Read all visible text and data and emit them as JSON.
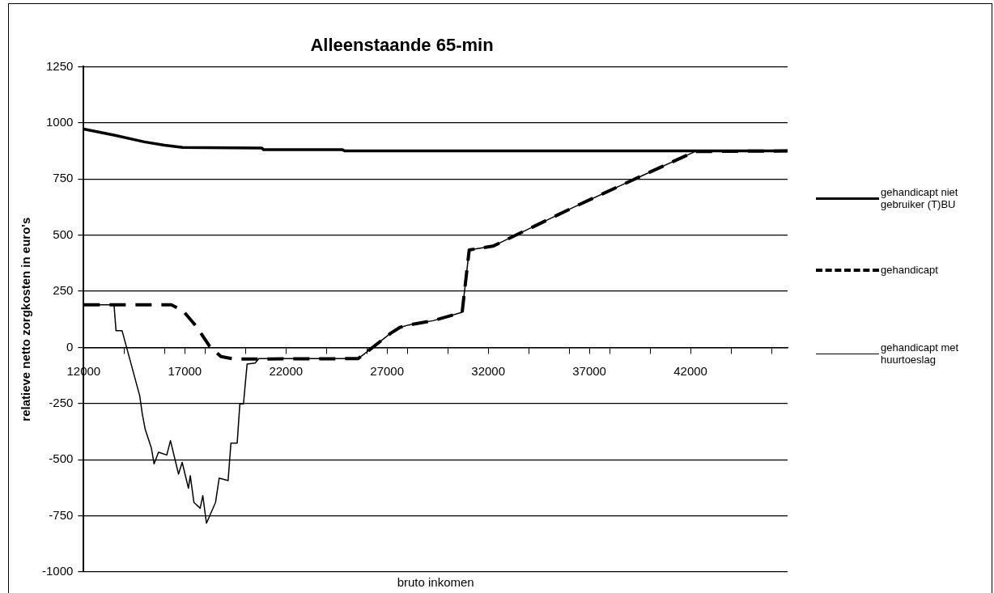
{
  "chart_data": {
    "type": "line",
    "title": "Alleenstaande 65-min",
    "xlabel": "bruto inkomen",
    "ylabel": "relatieve netto zorgkosten in euro's",
    "xlim": [
      12000,
      46800
    ],
    "xticks": [
      12000,
      {
        "value": 14000,
        "label": null
      },
      {
        "value": 16000,
        "label": null
      },
      17000,
      {
        "value": 18000,
        "label": null
      },
      {
        "value": 20000,
        "label": null
      },
      22000,
      {
        "value": 24000,
        "label": null
      },
      {
        "value": 26000,
        "label": null
      },
      27000,
      {
        "value": 28000,
        "label": null
      },
      {
        "value": 30000,
        "label": null
      },
      32000,
      {
        "value": 34000,
        "label": null
      },
      {
        "value": 36000,
        "label": null
      },
      37000,
      {
        "value": 38000,
        "label": null
      },
      {
        "value": 40000,
        "label": null
      },
      42000,
      {
        "value": 44000,
        "label": null
      },
      {
        "value": 46000,
        "label": null
      }
    ],
    "ylim": [
      -1000,
      1250
    ],
    "yticks": [
      -1000,
      -750,
      -500,
      -250,
      0,
      250,
      500,
      750,
      1000,
      1250
    ],
    "grid": "y",
    "legend": "right",
    "marker": "none",
    "series": [
      {
        "name": "gehandicapt niet gebruiker (T)BU",
        "color": "#000000",
        "line_style": "solid",
        "x": [
          12000,
          12400,
          13500,
          15000,
          16000,
          16900,
          20800,
          20900,
          24800,
          24900,
          46800
        ],
        "values": [
          972,
          965,
          945,
          915,
          900,
          890,
          888,
          880,
          880,
          875,
          875
        ]
      },
      {
        "name": "gehandicapt",
        "color": "#000000",
        "line_style": "dashed",
        "x": [
          12000,
          16330,
          16910,
          17600,
          18210,
          18790,
          19460,
          25570,
          26020,
          27180,
          27630,
          28070,
          29280,
          30710,
          31060,
          32270,
          36290,
          39230,
          42220,
          46800
        ],
        "values": [
          190,
          190,
          163,
          90,
          7,
          -41,
          -52,
          -50,
          -19,
          63,
          89,
          100,
          119,
          156,
          434,
          452,
          627,
          749,
          872,
          875
        ]
      },
      {
        "name": "gehandicapt met huurtoeslag",
        "color": "#000000",
        "line_style": "solid",
        "x": [
          12000,
          13500,
          13600,
          13900,
          14770,
          14900,
          15040,
          15350,
          15480,
          15700,
          16110,
          16290,
          16690,
          16870,
          17180,
          17270,
          17450,
          17760,
          17890,
          18070,
          18520,
          18700,
          19140,
          19280,
          19590,
          19720,
          19900,
          20080,
          20480,
          20660,
          25570,
          26020,
          27180,
          27630,
          28070,
          29280,
          30710,
          31060,
          32270,
          36290,
          39230,
          42220,
          46800
        ],
        "values": [
          190,
          190,
          74,
          74,
          -215,
          -297,
          -364,
          -449,
          -519,
          -467,
          -479,
          -415,
          -564,
          -512,
          -627,
          -571,
          -690,
          -716,
          -660,
          -783,
          -690,
          -582,
          -593,
          -426,
          -426,
          -252,
          -252,
          -74,
          -70,
          -50,
          -50,
          -19,
          63,
          89,
          100,
          119,
          156,
          434,
          452,
          627,
          749,
          872,
          875
        ]
      }
    ]
  }
}
